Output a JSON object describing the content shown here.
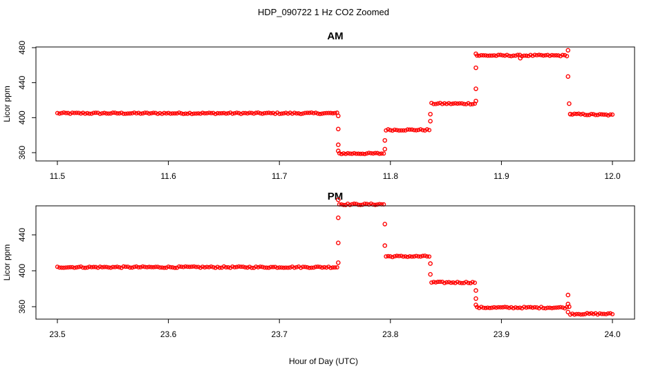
{
  "figure_title": "HDP_090722  1 Hz CO2 Zoomed",
  "x_axis_label": "Hour of Day (UTC)",
  "marker_color": "#ff0000",
  "chart_data": [
    {
      "type": "scatter",
      "title": "AM",
      "ylabel": "Licor ppm",
      "xlabel": "",
      "xlim": [
        11.5,
        12.0
      ],
      "ylim": [
        350,
        483
      ],
      "x_ticks": [
        "11.5",
        "11.6",
        "11.7",
        "11.8",
        "11.9",
        "12.0"
      ],
      "y_ticks": [
        "360",
        "400",
        "440",
        "480"
      ],
      "grid": false,
      "segments": [
        {
          "x_start": 11.5,
          "x_end": 11.752,
          "y": 405
        },
        {
          "x_start": 11.754,
          "x_end": 11.794,
          "y": 359
        },
        {
          "x_start": 11.796,
          "x_end": 11.835,
          "y": 386
        },
        {
          "x_start": 11.837,
          "x_end": 11.876,
          "y": 416
        },
        {
          "x_start": 11.878,
          "x_end": 11.959,
          "y": 471
        },
        {
          "x_start": 11.962,
          "x_end": 12.0,
          "y": 404,
          "y_end_value": 403
        }
      ],
      "transition_points": [
        {
          "x": 11.753,
          "y": 402
        },
        {
          "x": 11.753,
          "y": 387
        },
        {
          "x": 11.753,
          "y": 369
        },
        {
          "x": 11.753,
          "y": 362
        },
        {
          "x": 11.795,
          "y": 364
        },
        {
          "x": 11.795,
          "y": 374
        },
        {
          "x": 11.836,
          "y": 396
        },
        {
          "x": 11.836,
          "y": 404
        },
        {
          "x": 11.877,
          "y": 419
        },
        {
          "x": 11.877,
          "y": 433
        },
        {
          "x": 11.877,
          "y": 457
        },
        {
          "x": 11.877,
          "y": 473
        },
        {
          "x": 11.917,
          "y": 468
        },
        {
          "x": 11.96,
          "y": 477
        },
        {
          "x": 11.96,
          "y": 447
        },
        {
          "x": 11.961,
          "y": 416
        },
        {
          "x": 11.962,
          "y": 404
        }
      ]
    },
    {
      "type": "scatter",
      "title": "PM",
      "ylabel": "Licor ppm",
      "xlabel": "Hour of Day (UTC)",
      "xlim": [
        23.5,
        24.0
      ],
      "ylim": [
        350,
        483
      ],
      "x_ticks": [
        "23.5",
        "23.6",
        "23.7",
        "23.8",
        "23.9",
        "24.0"
      ],
      "y_ticks": [
        "360",
        "400",
        "440"
      ],
      "grid": false,
      "segments": [
        {
          "x_start": 23.5,
          "x_end": 23.752,
          "y": 404
        },
        {
          "x_start": 23.754,
          "x_end": 23.794,
          "y": 474
        },
        {
          "x_start": 23.796,
          "x_end": 23.835,
          "y": 416
        },
        {
          "x_start": 23.837,
          "x_end": 23.876,
          "y": 387
        },
        {
          "x_start": 23.878,
          "x_end": 23.959,
          "y": 359
        },
        {
          "x_start": 23.962,
          "x_end": 24.0,
          "y": 352
        }
      ],
      "transition_points": [
        {
          "x": 23.753,
          "y": 409
        },
        {
          "x": 23.753,
          "y": 431
        },
        {
          "x": 23.753,
          "y": 459
        },
        {
          "x": 23.753,
          "y": 479
        },
        {
          "x": 23.795,
          "y": 452
        },
        {
          "x": 23.795,
          "y": 428
        },
        {
          "x": 23.836,
          "y": 408
        },
        {
          "x": 23.836,
          "y": 396
        },
        {
          "x": 23.877,
          "y": 378
        },
        {
          "x": 23.877,
          "y": 369
        },
        {
          "x": 23.877,
          "y": 362
        },
        {
          "x": 23.96,
          "y": 373
        },
        {
          "x": 23.96,
          "y": 363
        },
        {
          "x": 23.961,
          "y": 360
        },
        {
          "x": 23.96,
          "y": 354
        }
      ]
    }
  ]
}
